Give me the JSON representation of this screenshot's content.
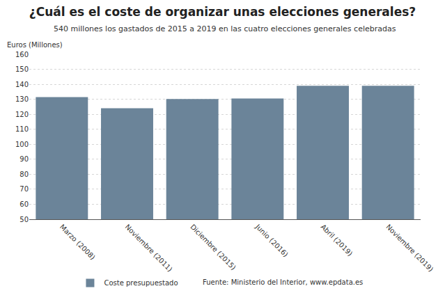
{
  "chart_data": {
    "type": "bar",
    "title": "¿Cuál es el coste de organizar unas elecciones generales?",
    "subtitle": "540 millones los gastados de 2015 a 2019 en las cuatro elecciones generales celebradas",
    "y_label": "Euros (Millones)",
    "source": "Fuente: Ministerio del Interior, www.epdata.es",
    "categories": [
      "Marzo (2008)",
      "Noviembre (2011)",
      "Diciembre (2015)",
      "Junio (2016)",
      "Abril (2019)",
      "Noviembre (2019)"
    ],
    "series": [
      {
        "name": "Coste presupuestado",
        "color": "#6b8499",
        "values": [
          131.5,
          124,
          130.2,
          130.5,
          139,
          139
        ]
      }
    ],
    "ylim": [
      50,
      160
    ],
    "yticks": [
      50,
      60,
      70,
      80,
      90,
      100,
      110,
      120,
      130,
      140,
      150,
      160
    ],
    "grid": true,
    "legend": "bottom"
  }
}
